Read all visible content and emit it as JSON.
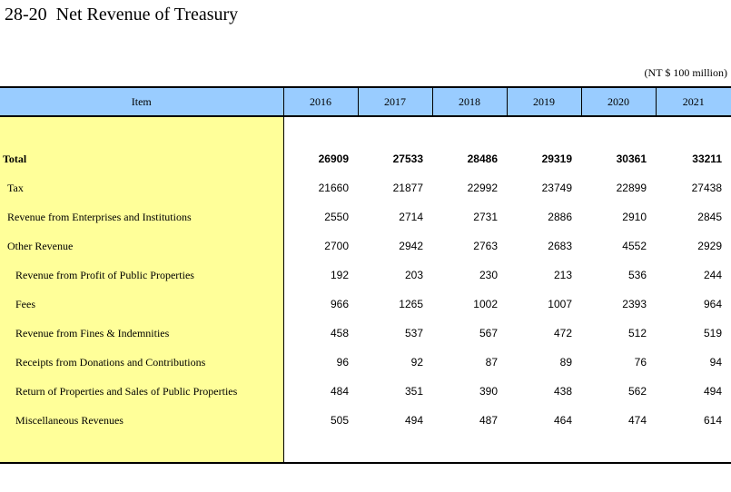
{
  "title": "28-20  Net Revenue of Treasury",
  "unit": "(NT $ 100 million)",
  "table": {
    "item_header": "Item",
    "years": [
      "2016",
      "2017",
      "2018",
      "2019",
      "2020",
      "2021"
    ],
    "rows": [
      {
        "label": "Total",
        "level": 0,
        "values": [
          "26909",
          "27533",
          "28486",
          "29319",
          "30361",
          "33211"
        ]
      },
      {
        "label": "Tax",
        "level": 1,
        "values": [
          "21660",
          "21877",
          "22992",
          "23749",
          "22899",
          "27438"
        ]
      },
      {
        "label": "Revenue from Enterprises and Institutions",
        "level": 1,
        "values": [
          "2550",
          "2714",
          "2731",
          "2886",
          "2910",
          "2845"
        ]
      },
      {
        "label": "Other Revenue",
        "level": 1,
        "values": [
          "2700",
          "2942",
          "2763",
          "2683",
          "4552",
          "2929"
        ]
      },
      {
        "label": "Revenue from Profit of Public Properties",
        "level": 2,
        "values": [
          "192",
          "203",
          "230",
          "213",
          "536",
          "244"
        ]
      },
      {
        "label": "Fees",
        "level": 2,
        "values": [
          "966",
          "1265",
          "1002",
          "1007",
          "2393",
          "964"
        ]
      },
      {
        "label": "Revenue from Fines & Indemnities",
        "level": 2,
        "values": [
          "458",
          "537",
          "567",
          "472",
          "512",
          "519"
        ]
      },
      {
        "label": "Receipts from Donations and Contributions",
        "level": 2,
        "values": [
          "96",
          "92",
          "87",
          "89",
          "76",
          "94"
        ]
      },
      {
        "label": "Return of Properties and Sales of Public Properties",
        "level": 2,
        "values": [
          "484",
          "351",
          "390",
          "438",
          "562",
          "494"
        ]
      },
      {
        "label": "Miscellaneous Revenues",
        "level": 2,
        "values": [
          "505",
          "494",
          "487",
          "464",
          "474",
          "614"
        ]
      }
    ]
  }
}
